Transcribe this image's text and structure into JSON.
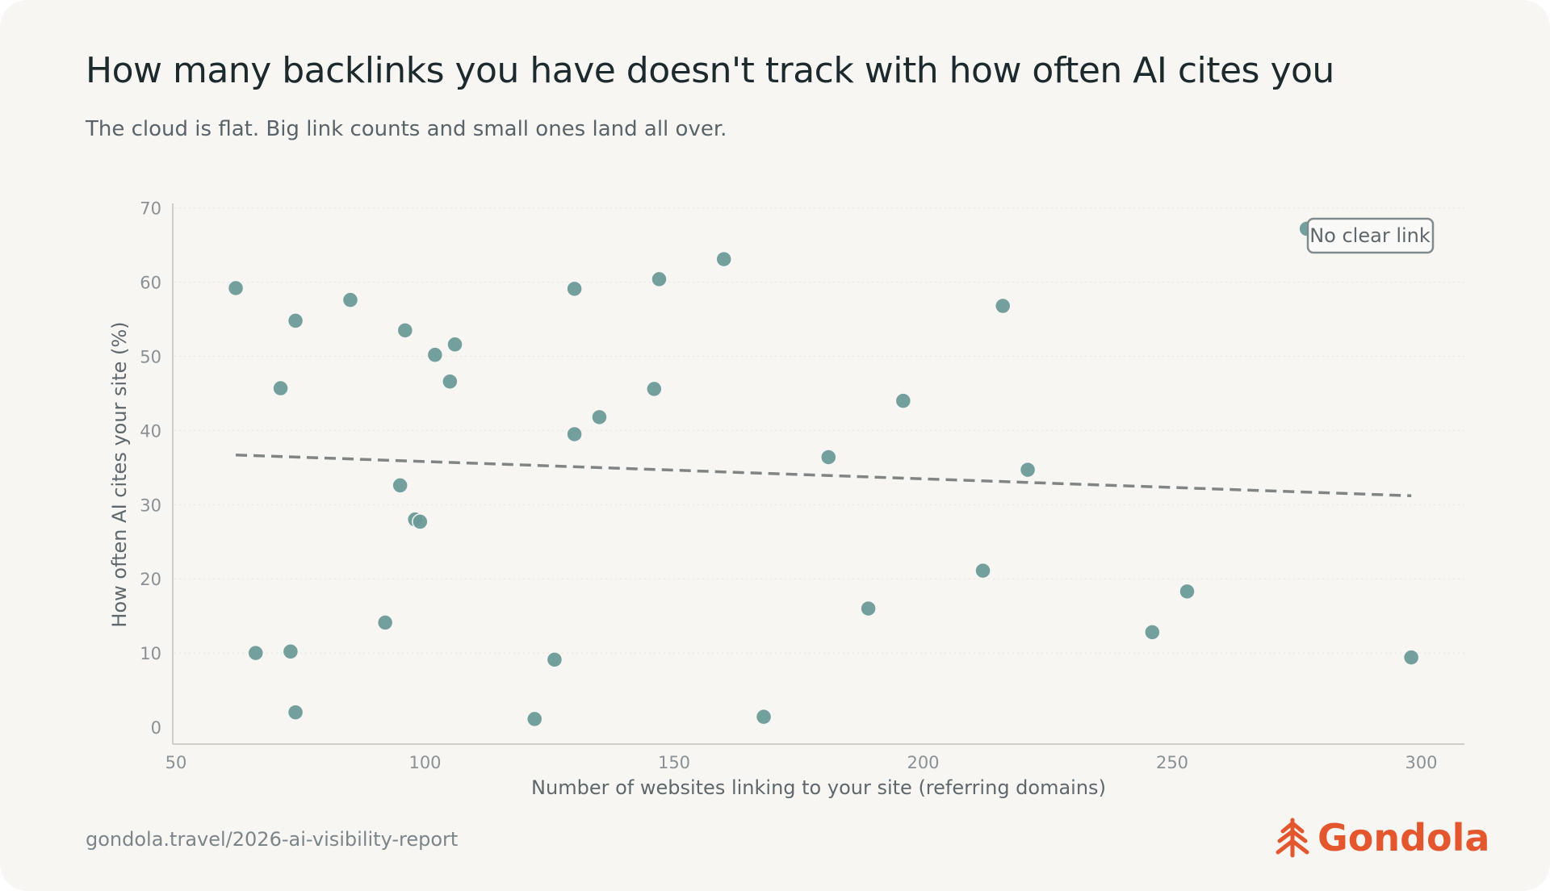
{
  "title": "How many backlinks you have doesn't track with how often AI cites you",
  "subtitle": "The cloud is flat. Big link counts and small ones land all over.",
  "footer_url": "gondola.travel/2026-ai-visibility-report",
  "brand": {
    "name": "Gondola",
    "color": "#e4572e",
    "icon": "gondola-chevron-logo-icon"
  },
  "colors": {
    "point": "#6b9a98",
    "trend": "#808584",
    "axis": "#cfcdc6",
    "grid": "#e6e4de",
    "tick_text": "#8a9194",
    "label_text": "#5e686c"
  },
  "chart_data": {
    "type": "scatter",
    "xlabel": "Number of websites linking to your site (referring domains)",
    "ylabel": "How often AI cites your site (%)",
    "xlim": [
      50,
      305
    ],
    "ylim": [
      -2,
      70
    ],
    "xticks": [
      50,
      100,
      150,
      200,
      250,
      300
    ],
    "yticks": [
      0,
      10,
      20,
      30,
      40,
      50,
      60,
      70
    ],
    "grid": "horizontal-dotted",
    "points": [
      {
        "x": 62,
        "y": 59.2
      },
      {
        "x": 66,
        "y": 10.0
      },
      {
        "x": 71,
        "y": 45.7
      },
      {
        "x": 73,
        "y": 10.2
      },
      {
        "x": 74,
        "y": 54.8
      },
      {
        "x": 74,
        "y": 2.0
      },
      {
        "x": 85,
        "y": 57.6
      },
      {
        "x": 92,
        "y": 14.1
      },
      {
        "x": 95,
        "y": 32.6
      },
      {
        "x": 96,
        "y": 53.5
      },
      {
        "x": 98,
        "y": 28.0
      },
      {
        "x": 99,
        "y": 27.7
      },
      {
        "x": 102,
        "y": 50.2
      },
      {
        "x": 105,
        "y": 46.6
      },
      {
        "x": 106,
        "y": 51.6
      },
      {
        "x": 122,
        "y": 1.1
      },
      {
        "x": 126,
        "y": 9.1
      },
      {
        "x": 130,
        "y": 59.1
      },
      {
        "x": 130,
        "y": 39.5
      },
      {
        "x": 135,
        "y": 41.8
      },
      {
        "x": 146,
        "y": 45.6
      },
      {
        "x": 147,
        "y": 60.4
      },
      {
        "x": 160,
        "y": 63.1
      },
      {
        "x": 168,
        "y": 1.4
      },
      {
        "x": 181,
        "y": 36.4
      },
      {
        "x": 189,
        "y": 16.0
      },
      {
        "x": 196,
        "y": 44.0
      },
      {
        "x": 212,
        "y": 21.1
      },
      {
        "x": 216,
        "y": 56.8
      },
      {
        "x": 221,
        "y": 34.7
      },
      {
        "x": 246,
        "y": 12.8
      },
      {
        "x": 253,
        "y": 18.3
      },
      {
        "x": 277,
        "y": 67.2
      },
      {
        "x": 298,
        "y": 9.4
      }
    ],
    "trendline": {
      "style": "dashed",
      "x": [
        62,
        298
      ],
      "y": [
        36.7,
        31.2
      ]
    },
    "annotation": {
      "text": "No clear link",
      "position": "top-right"
    }
  }
}
